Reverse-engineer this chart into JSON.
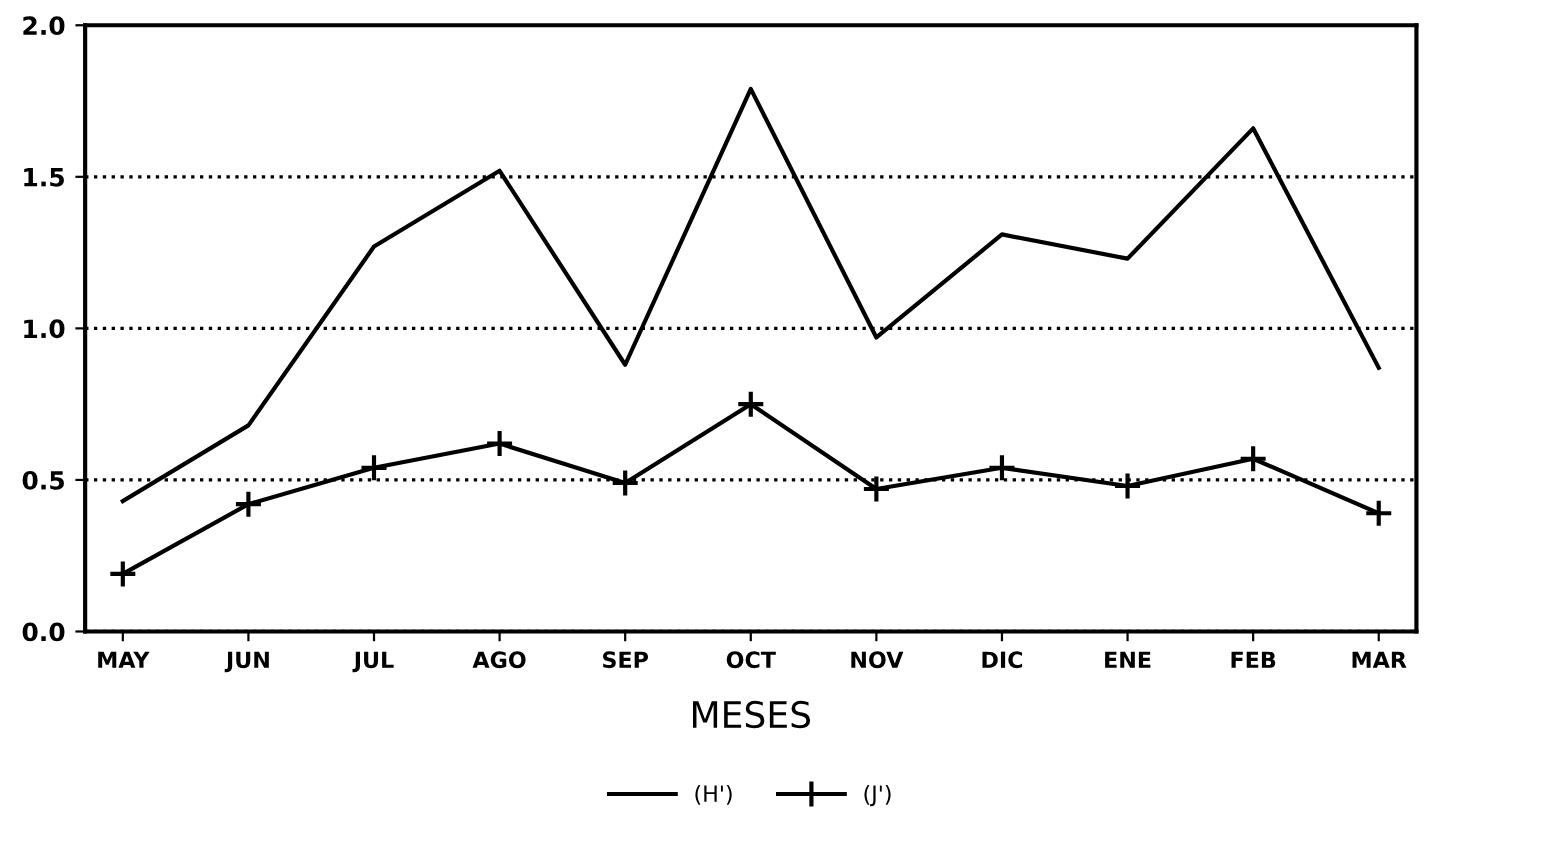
{
  "chart_data": {
    "type": "line",
    "xlabel": "MESES",
    "categories": [
      "MAY",
      "JUN",
      "JUL",
      "AGO",
      "SEP",
      "OCT",
      "NOV",
      "DIC",
      "ENE",
      "FEB",
      "MAR"
    ],
    "series": [
      {
        "name": "(H')",
        "color": "#000000",
        "marker": "none",
        "values": [
          0.43,
          0.68,
          1.27,
          1.52,
          0.88,
          1.79,
          0.97,
          1.31,
          1.23,
          1.66,
          0.87
        ]
      },
      {
        "name": "(J')",
        "color": "#000000",
        "marker": "cross",
        "values": [
          0.19,
          0.42,
          0.54,
          0.62,
          0.49,
          0.75,
          0.47,
          0.54,
          0.48,
          0.57,
          0.39
        ]
      }
    ],
    "ylim": [
      0,
      2.0
    ],
    "yticks": [
      {
        "value": 0,
        "label": "0.0"
      },
      {
        "value": 0.5,
        "label": "0.5"
      },
      {
        "value": 1.0,
        "label": "1.0"
      },
      {
        "value": 1.5,
        "label": "1.5"
      },
      {
        "value": 2.0,
        "label": "2.0"
      }
    ],
    "grid": "y",
    "line_style": "solid",
    "legend": "bottom"
  }
}
